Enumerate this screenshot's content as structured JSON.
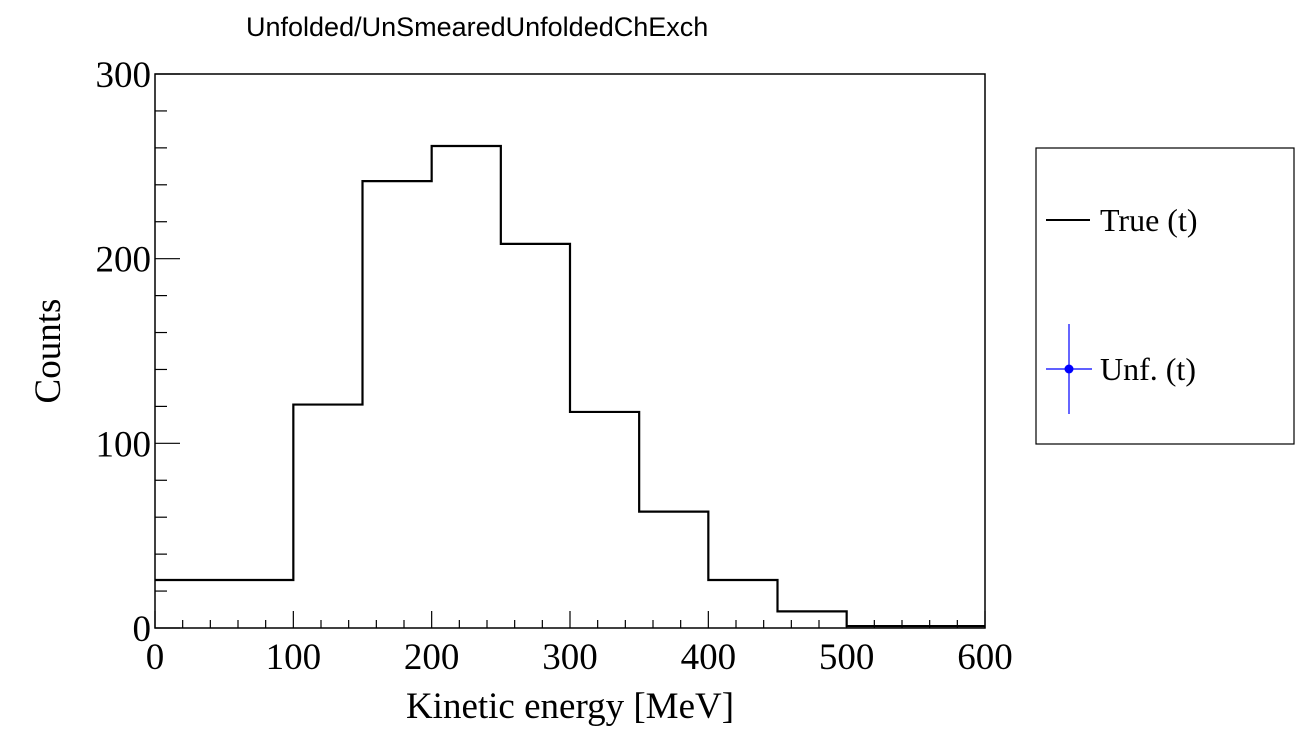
{
  "chart_data": {
    "type": "histogram",
    "title": "Unfolded/UnSmearedUnfoldedChExch",
    "xlabel": "Kinetic energy [MeV]",
    "ylabel": "Counts",
    "xlim": [
      0,
      600
    ],
    "ylim": [
      0,
      300
    ],
    "x_ticks": [
      "0",
      "100",
      "200",
      "300",
      "400",
      "500",
      "600"
    ],
    "y_ticks": [
      "0",
      "100",
      "200",
      "300"
    ],
    "bin_edges": [
      0,
      100,
      150,
      200,
      250,
      300,
      350,
      400,
      450,
      500,
      600
    ],
    "series": [
      {
        "name": "True (t)",
        "style": "step-line",
        "color": "#000000",
        "values": [
          26,
          121,
          242,
          261,
          208,
          117,
          63,
          26,
          9,
          1
        ]
      },
      {
        "name": "Unf. (t)",
        "style": "marker-errorbar",
        "color": "#0000ff",
        "values": []
      }
    ],
    "legend": {
      "position": "right",
      "entries": [
        "True (t)",
        "Unf. (t)"
      ]
    },
    "grid": false
  }
}
